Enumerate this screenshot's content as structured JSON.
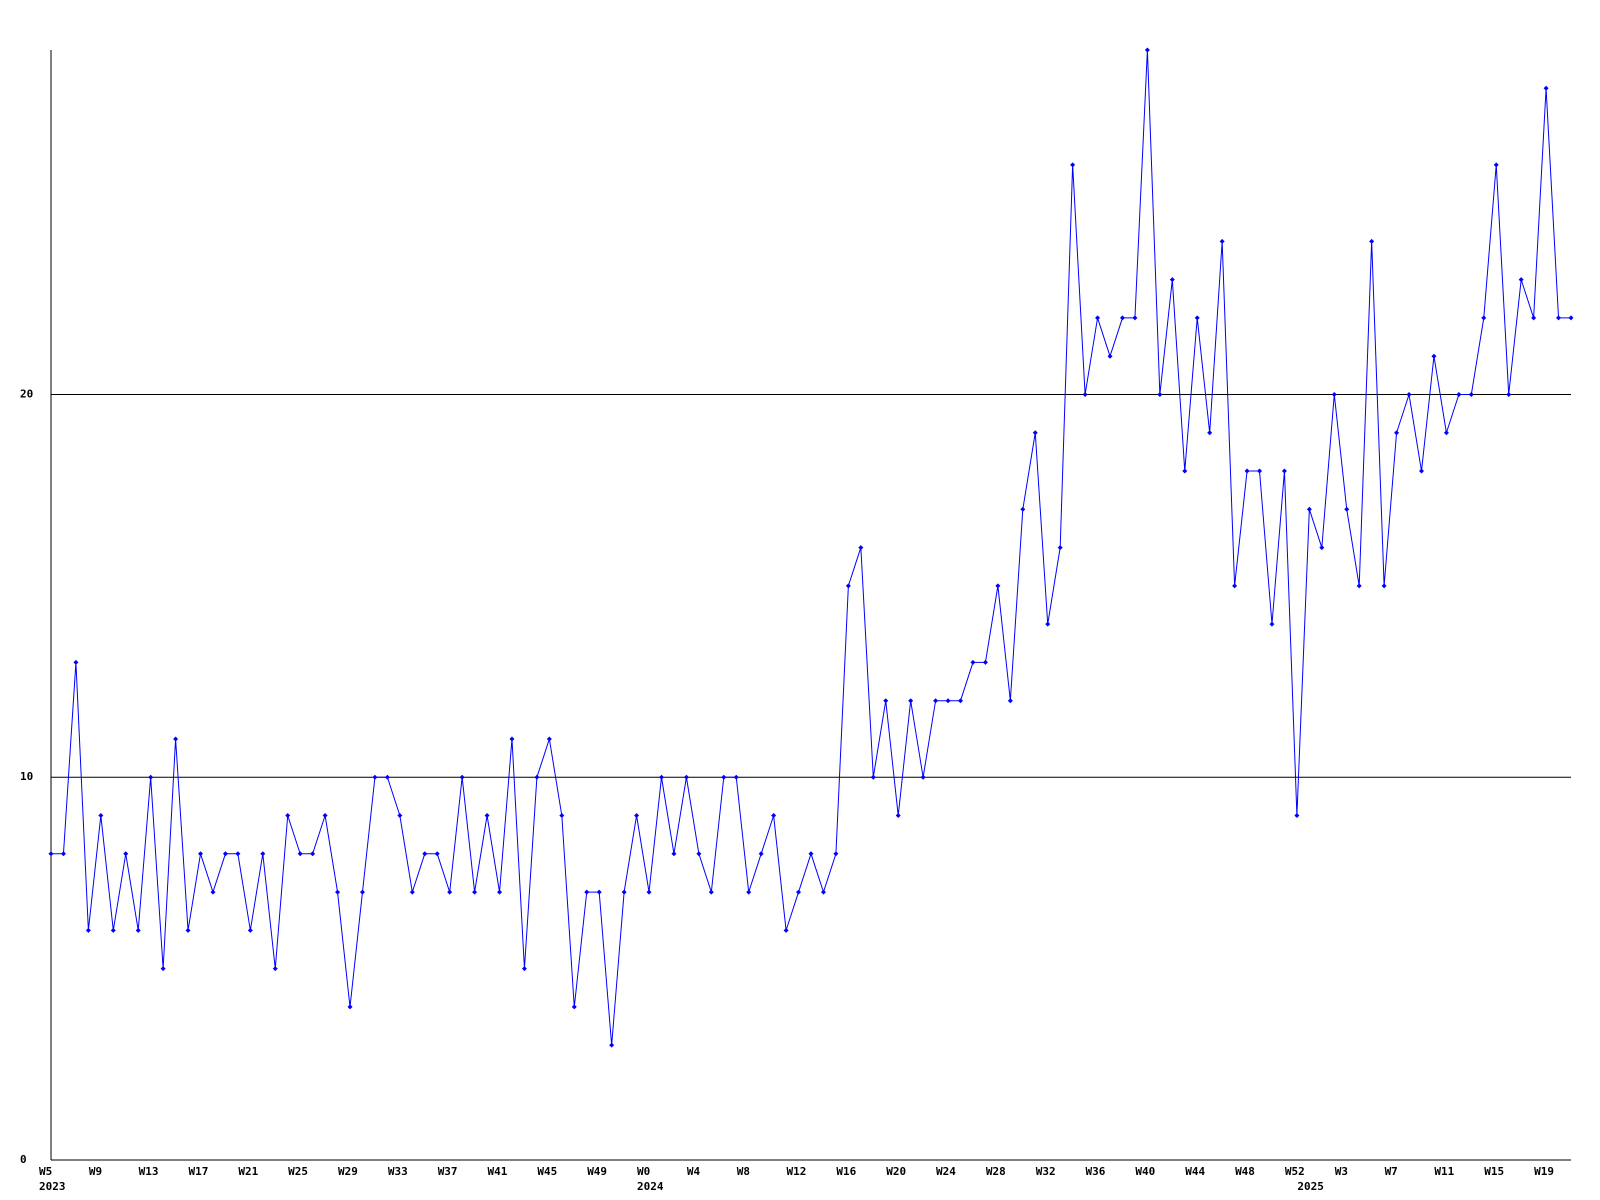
{
  "chart_data": {
    "type": "line",
    "categories": [
      "W5",
      null,
      null,
      null,
      "W9",
      null,
      null,
      null,
      "W13",
      null,
      null,
      null,
      "W17",
      null,
      null,
      null,
      "W21",
      null,
      null,
      null,
      "W25",
      null,
      null,
      null,
      "W29",
      null,
      null,
      null,
      "W33",
      null,
      null,
      null,
      "W37",
      null,
      null,
      null,
      "W41",
      null,
      null,
      null,
      "W45",
      null,
      null,
      null,
      "W49",
      null,
      null,
      null,
      "W0",
      null,
      null,
      null,
      "W4",
      null,
      null,
      null,
      "W8",
      null,
      null,
      null,
      "W12",
      null,
      null,
      null,
      "W16",
      null,
      null,
      null,
      "W20",
      null,
      null,
      null,
      "W24",
      null,
      null,
      null,
      "W28",
      null,
      null,
      null,
      "W32",
      null,
      null,
      null,
      "W36",
      null,
      null,
      null,
      "W40",
      null,
      null,
      null,
      "W44",
      null,
      null,
      null,
      "W48",
      null,
      null,
      null,
      "W52",
      null,
      null,
      null,
      "W3",
      null,
      null,
      null,
      "W7",
      null,
      null,
      null,
      "W11",
      null,
      null,
      null,
      "W15",
      null,
      null,
      null,
      "W19",
      null,
      null
    ],
    "category_years": [
      "2023",
      null,
      null,
      null,
      null,
      null,
      null,
      null,
      null,
      null,
      null,
      null,
      null,
      null,
      null,
      null,
      null,
      null,
      null,
      null,
      null,
      null,
      null,
      null,
      null,
      null,
      null,
      null,
      null,
      null,
      null,
      null,
      null,
      null,
      null,
      null,
      null,
      null,
      null,
      null,
      null,
      null,
      null,
      null,
      null,
      null,
      null,
      null,
      "2024",
      null,
      null,
      null,
      null,
      null,
      null,
      null,
      null,
      null,
      null,
      null,
      null,
      null,
      null,
      null,
      null,
      null,
      null,
      null,
      null,
      null,
      null,
      null,
      null,
      null,
      null,
      null,
      null,
      null,
      null,
      null,
      null,
      null,
      null,
      null,
      null,
      null,
      null,
      null,
      null,
      null,
      null,
      null,
      null,
      null,
      null,
      null,
      null,
      null,
      null,
      null,
      null,
      "2025",
      null,
      null,
      null,
      null,
      null,
      null,
      null,
      null,
      null,
      null,
      null,
      null,
      null,
      null,
      null,
      null,
      null,
      null,
      null,
      null,
      null
    ],
    "values": [
      8,
      8,
      13,
      6,
      9,
      6,
      8,
      6,
      10,
      5,
      11,
      6,
      8,
      7,
      8,
      8,
      6,
      8,
      5,
      9,
      8,
      8,
      9,
      7,
      4,
      7,
      10,
      10,
      9,
      7,
      8,
      8,
      7,
      10,
      7,
      9,
      7,
      11,
      5,
      10,
      11,
      9,
      4,
      7,
      7,
      3,
      7,
      9,
      7,
      10,
      8,
      10,
      8,
      7,
      10,
      10,
      7,
      8,
      9,
      6,
      7,
      8,
      7,
      8,
      15,
      16,
      10,
      12,
      9,
      12,
      10,
      12,
      12,
      12,
      13,
      13,
      15,
      12,
      17,
      19,
      14,
      16,
      26,
      20,
      22,
      21,
      22,
      22,
      29,
      20,
      23,
      18,
      22,
      19,
      24,
      15,
      18,
      18,
      14,
      18,
      9,
      17,
      16,
      20,
      17,
      15,
      24,
      15,
      19,
      20,
      18,
      21,
      19,
      20,
      20,
      22,
      26,
      20,
      23,
      22,
      28,
      22,
      22
    ],
    "color": "#0000ff",
    "ylim": [
      0,
      29
    ],
    "yticks": [
      0,
      10,
      20
    ],
    "grid": true
  }
}
